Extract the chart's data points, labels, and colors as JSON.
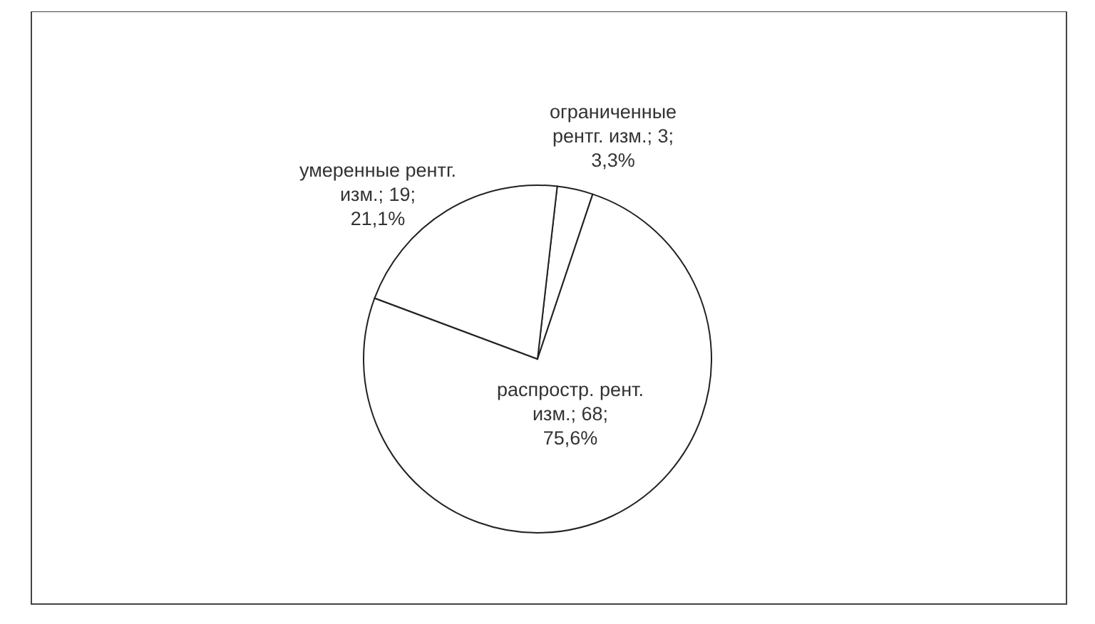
{
  "chart_data": {
    "type": "pie",
    "categories": [
      "ограниченные рентг. изм.",
      "распростр. рент. изм.",
      "умеренные рентг. изм."
    ],
    "values": [
      3,
      68,
      19
    ],
    "colors": [
      "#ffffff",
      "#ffffff",
      "#ffffff"
    ],
    "value_labels": [
      "3; 3,3%",
      "68; 75,6%",
      "19; 21,1%"
    ]
  }
}
